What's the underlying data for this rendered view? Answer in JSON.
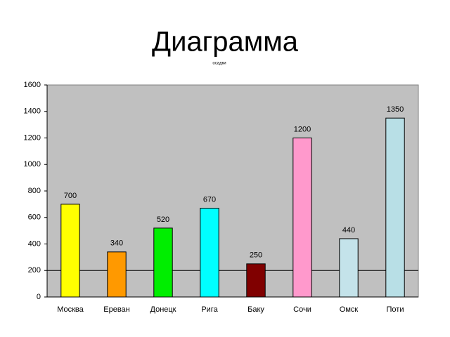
{
  "chart_data": {
    "type": "bar",
    "title": "Диаграмма",
    "subtitle": "осадки",
    "categories": [
      "Москва",
      "Ереван",
      "Донецк",
      "Рига",
      "Баку",
      "Сочи",
      "Омск",
      "Поти"
    ],
    "values": [
      700,
      340,
      520,
      670,
      250,
      1200,
      440,
      1350
    ],
    "colors": [
      "#ffff00",
      "#ff9900",
      "#00ee00",
      "#00ffff",
      "#800000",
      "#ff99cc",
      "#c4e3ea",
      "#b8dfe6"
    ],
    "ylim": [
      0,
      1600
    ],
    "yticks": [
      0,
      200,
      400,
      600,
      800,
      1000,
      1200,
      1400,
      1600
    ],
    "reference_line": 200
  }
}
